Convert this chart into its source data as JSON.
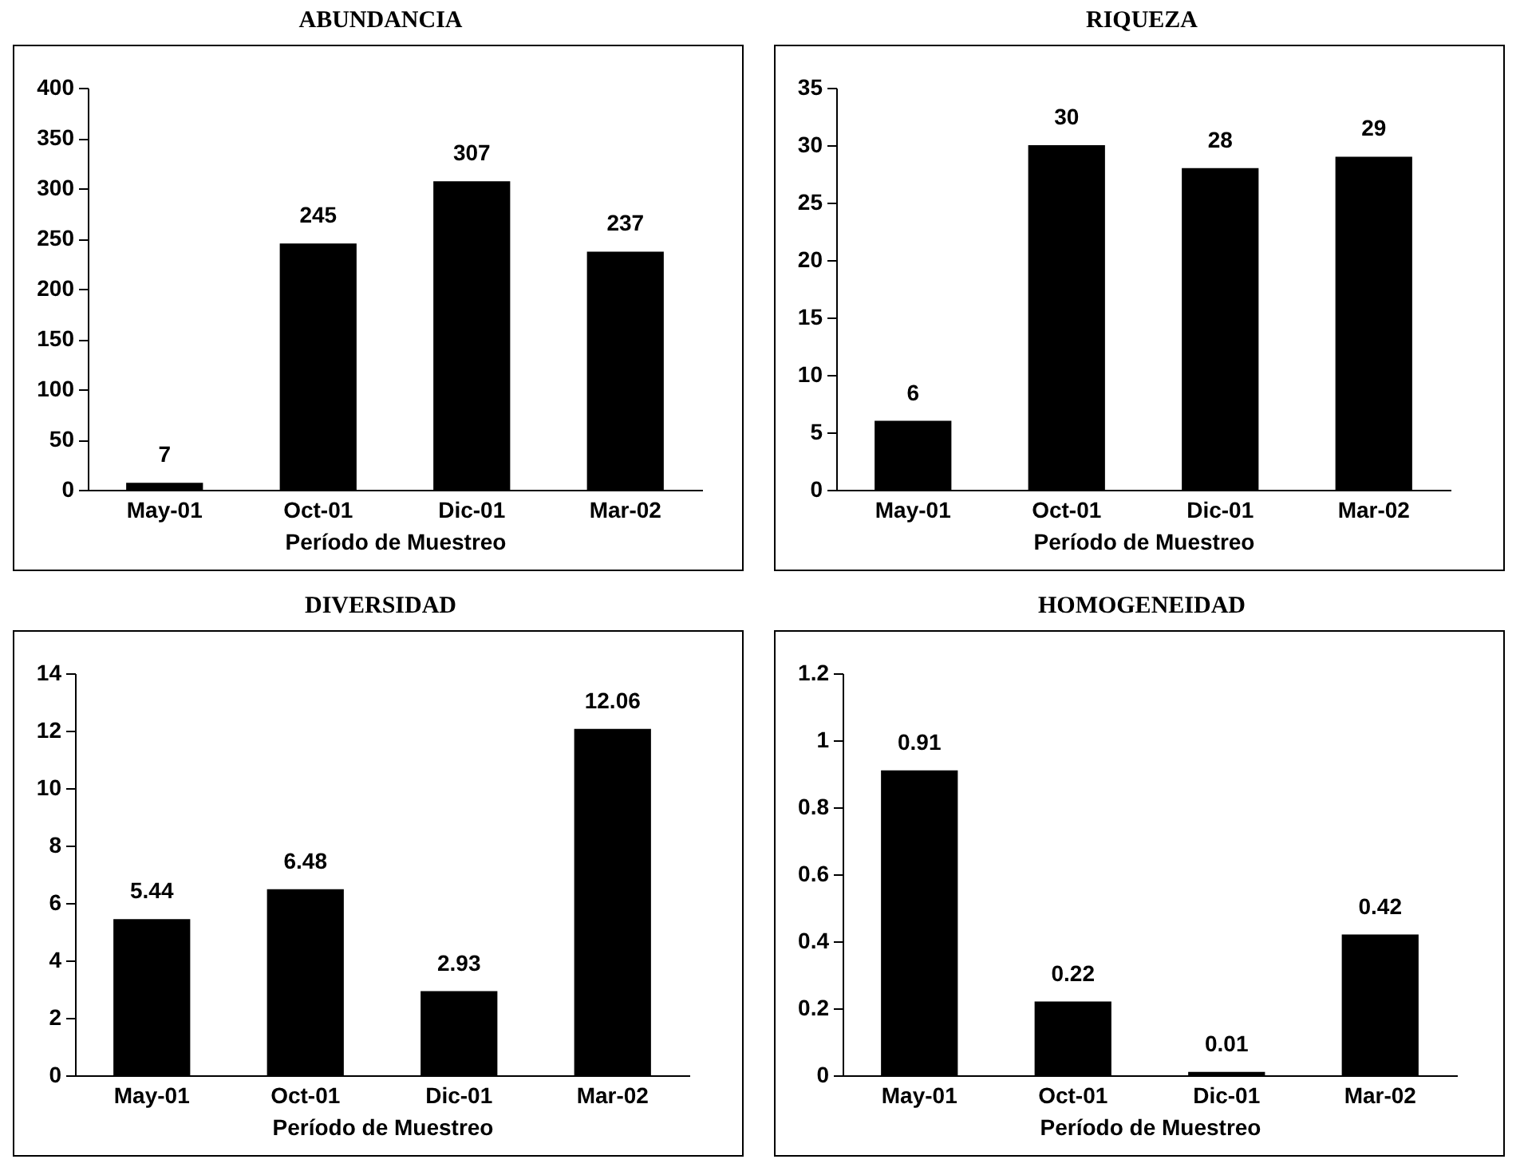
{
  "chart_data": [
    {
      "type": "bar",
      "title": "ABUNDANCIA",
      "xlabel": "Período de Muestreo",
      "categories": [
        "May-01",
        "Oct-01",
        "Dic-01",
        "Mar-02"
      ],
      "values": [
        7,
        245,
        307,
        237
      ],
      "color": "#000000",
      "ylim": [
        0,
        400
      ],
      "yticks": [
        0,
        50,
        100,
        150,
        200,
        250,
        300,
        350,
        400
      ],
      "data_labels": true
    },
    {
      "type": "bar",
      "title": "RIQUEZA",
      "xlabel": "Período de Muestreo",
      "categories": [
        "May-01",
        "Oct-01",
        "Dic-01",
        "Mar-02"
      ],
      "values": [
        6,
        30,
        28,
        29
      ],
      "color": "#000000",
      "ylim": [
        0,
        35
      ],
      "yticks": [
        0,
        5,
        10,
        15,
        20,
        25,
        30,
        35
      ],
      "data_labels": true
    },
    {
      "type": "bar",
      "title": "DIVERSIDAD",
      "xlabel": "Período de Muestreo",
      "categories": [
        "May-01",
        "Oct-01",
        "Dic-01",
        "Mar-02"
      ],
      "values": [
        5.44,
        6.48,
        2.93,
        12.06
      ],
      "color": "#000000",
      "ylim": [
        0,
        14
      ],
      "yticks": [
        0,
        2,
        4,
        6,
        8,
        10,
        12,
        14
      ],
      "data_labels": true
    },
    {
      "type": "bar",
      "title": "HOMOGENEIDAD",
      "xlabel": "Período de Muestreo",
      "categories": [
        "May-01",
        "Oct-01",
        "Dic-01",
        "Mar-02"
      ],
      "values": [
        0.91,
        0.22,
        0.01,
        0.42
      ],
      "color": "#000000",
      "ylim": [
        0,
        1.2
      ],
      "yticks": [
        0,
        0.2,
        0.4,
        0.6,
        0.8,
        1,
        1.2
      ],
      "data_labels": true
    }
  ]
}
